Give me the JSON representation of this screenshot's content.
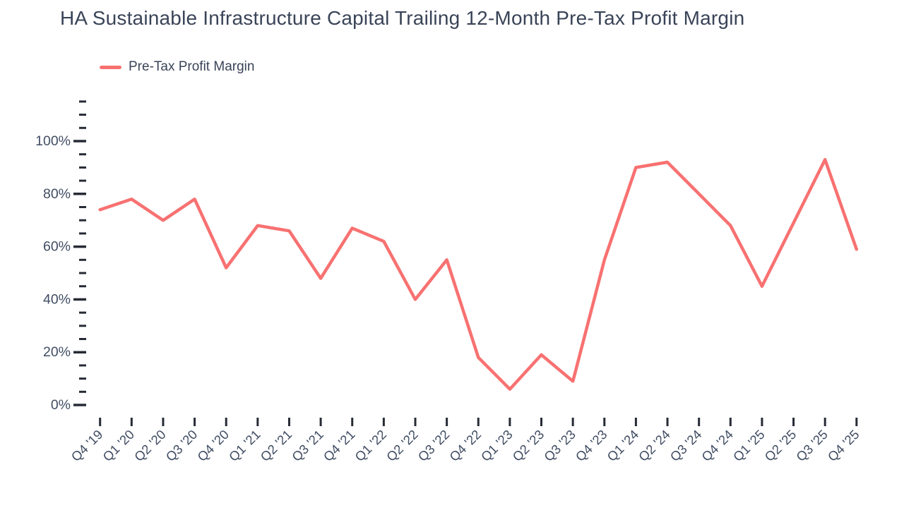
{
  "title": "HA Sustainable Infrastructure Capital Trailing 12-Month Pre-Tax Profit Margin",
  "legend": {
    "label": "Pre-Tax Profit Margin"
  },
  "colors": {
    "line": "#f87171",
    "title_text": "#3a4458",
    "axis_text": "#414d63",
    "tick": "#262b35",
    "background": "#ffffff"
  },
  "chart_data": {
    "type": "line",
    "title": "HA Sustainable Infrastructure Capital Trailing 12-Month Pre-Tax Profit Margin",
    "series": [
      {
        "name": "Pre-Tax Profit Margin",
        "values": [
          74,
          78,
          70,
          78,
          52,
          68,
          66,
          48,
          67,
          62,
          40,
          55,
          18,
          6,
          19,
          9,
          55,
          90,
          92,
          80,
          68,
          45,
          69,
          93,
          59
        ]
      }
    ],
    "categories": [
      "Q4 '19",
      "Q1 '20",
      "Q2 '20",
      "Q3 '20",
      "Q4 '20",
      "Q1 '21",
      "Q2 '21",
      "Q3 '21",
      "Q4 '21",
      "Q1 '22",
      "Q2 '22",
      "Q3 '22",
      "Q4 '22",
      "Q1 '23",
      "Q2 '23",
      "Q3 '23",
      "Q4 '23",
      "Q1 '24",
      "Q2 '24",
      "Q3 '24",
      "Q4 '24",
      "Q1 '25",
      "Q2 '25",
      "Q3 '25",
      "Q4 '25"
    ],
    "unit": "%",
    "xlabel": "",
    "ylabel": "",
    "ylim": [
      0,
      115
    ],
    "y_major_step": 20,
    "y_minor_step": 5,
    "y_tick_labels": [
      "0%",
      "20%",
      "40%",
      "60%",
      "80%",
      "100%"
    ],
    "x_label_rotation": -45,
    "grid": false,
    "legend_position": "top-left",
    "line_color": "#f87171"
  }
}
